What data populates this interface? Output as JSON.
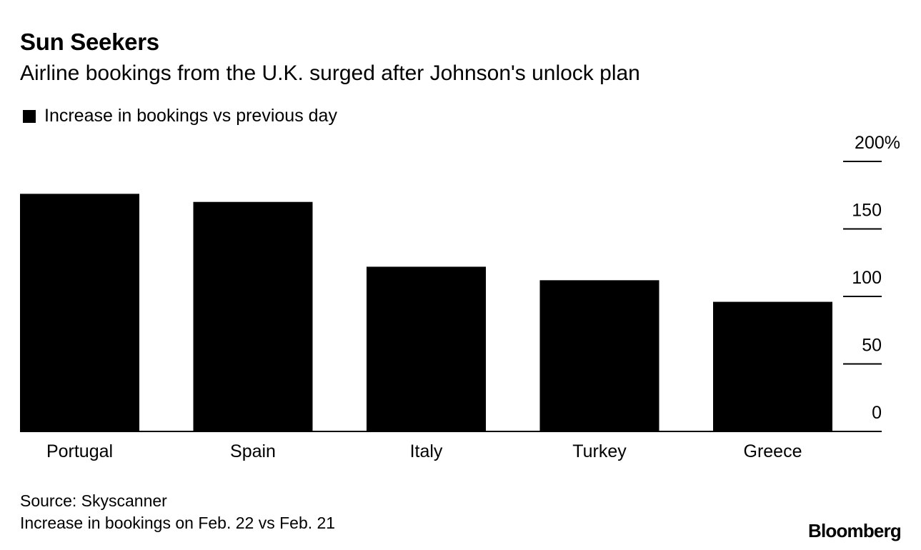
{
  "header": {
    "title": "Sun Seekers",
    "subtitle": "Airline bookings from the U.K. surged after Johnson's unlock plan"
  },
  "legend": {
    "label": "Increase in bookings vs previous day"
  },
  "footer": {
    "source": "Source: Skyscanner",
    "note": "Increase in bookings on Feb. 22 vs Feb. 21",
    "brand": "Bloomberg"
  },
  "colors": {
    "bar": "#000000",
    "text": "#000000",
    "background": "#ffffff"
  },
  "chart_data": {
    "type": "bar",
    "title": "Sun Seekers",
    "subtitle": "Airline bookings from the U.K. surged after Johnson's unlock plan",
    "categories": [
      "Portugal",
      "Spain",
      "Italy",
      "Turkey",
      "Greece"
    ],
    "series": [
      {
        "name": "Increase in bookings vs previous day",
        "values": [
          176,
          170,
          122,
          112,
          96
        ]
      }
    ],
    "xlabel": "",
    "ylabel": "",
    "ylim": [
      0,
      200
    ],
    "yticks": [
      0,
      50,
      100,
      150,
      200
    ],
    "ytick_labels": [
      "0",
      "50",
      "100",
      "150",
      "200%"
    ],
    "y_axis_side": "right",
    "legend_position": "top-left",
    "grid": false
  }
}
